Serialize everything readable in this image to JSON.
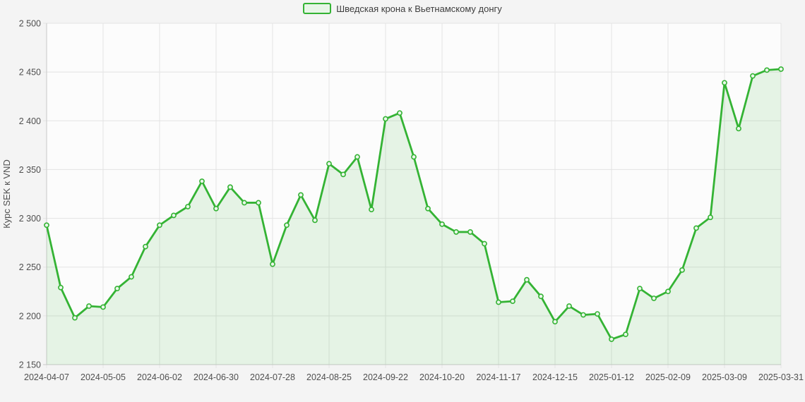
{
  "legend": {
    "label": "Шведская крона к Вьетнамскому донгу"
  },
  "colors": {
    "page_bg": "#f4f4f4",
    "plot_bg": "#fcfcfc",
    "line": "#34b334",
    "area_fill": "rgba(80,186,80,0.13)",
    "marker_fill": "#eaf7ea",
    "grid": "#e3e3e3",
    "axis": "#c9c9c9",
    "label_text": "#4f4f4f",
    "legend_text": "#3d3d3d"
  },
  "chart_data": {
    "type": "area",
    "title": "",
    "ylabel": "Курс SEK к VND",
    "xlabel": "",
    "ylim": [
      2150,
      2500
    ],
    "grid": true,
    "legend_position": "top-center",
    "yticks": [
      2150,
      2200,
      2250,
      2300,
      2350,
      2400,
      2450,
      2500
    ],
    "ytick_labels": [
      "2 150",
      "2 200",
      "2 250",
      "2 300",
      "2 350",
      "2 400",
      "2 450",
      "2 500"
    ],
    "x": [
      "2024-04-07",
      "2024-04-14",
      "2024-04-21",
      "2024-04-28",
      "2024-05-05",
      "2024-05-12",
      "2024-05-19",
      "2024-05-26",
      "2024-06-02",
      "2024-06-09",
      "2024-06-16",
      "2024-06-23",
      "2024-06-30",
      "2024-07-07",
      "2024-07-14",
      "2024-07-21",
      "2024-07-28",
      "2024-08-04",
      "2024-08-11",
      "2024-08-18",
      "2024-08-25",
      "2024-09-01",
      "2024-09-08",
      "2024-09-15",
      "2024-09-22",
      "2024-09-29",
      "2024-10-06",
      "2024-10-13",
      "2024-10-20",
      "2024-10-27",
      "2024-11-03",
      "2024-11-10",
      "2024-11-17",
      "2024-11-24",
      "2024-12-01",
      "2024-12-08",
      "2024-12-15",
      "2024-12-22",
      "2024-12-29",
      "2025-01-05",
      "2025-01-12",
      "2025-01-19",
      "2025-01-26",
      "2025-02-02",
      "2025-02-09",
      "2025-02-16",
      "2025-02-23",
      "2025-03-02",
      "2025-03-09",
      "2025-03-16",
      "2025-03-23",
      "2025-03-30",
      "2025-03-31"
    ],
    "xtick_indices": [
      0,
      4,
      8,
      12,
      16,
      20,
      24,
      28,
      32,
      36,
      40,
      44,
      48,
      52
    ],
    "xtick_labels": [
      "2024-04-07",
      "2024-05-05",
      "2024-06-02",
      "2024-06-30",
      "2024-07-28",
      "2024-08-25",
      "2024-09-22",
      "2024-10-20",
      "2024-11-17",
      "2024-12-15",
      "2025-01-12",
      "2025-02-09",
      "2025-03-09",
      "2025-03-31"
    ],
    "series": [
      {
        "name": "Шведская крона к Вьетнамскому донгу",
        "values": [
          2293,
          2229,
          2198,
          2210,
          2209,
          2228,
          2240,
          2271,
          2293,
          2303,
          2312,
          2338,
          2310,
          2332,
          2316,
          2316,
          2253,
          2293,
          2324,
          2298,
          2356,
          2345,
          2363,
          2309,
          2402,
          2408,
          2363,
          2310,
          2294,
          2286,
          2286,
          2274,
          2214,
          2215,
          2237,
          2220,
          2194,
          2210,
          2201,
          2202,
          2176,
          2181,
          2228,
          2218,
          2225,
          2247,
          2290,
          2301,
          2439,
          2392,
          2446,
          2452,
          2453
        ]
      }
    ]
  }
}
